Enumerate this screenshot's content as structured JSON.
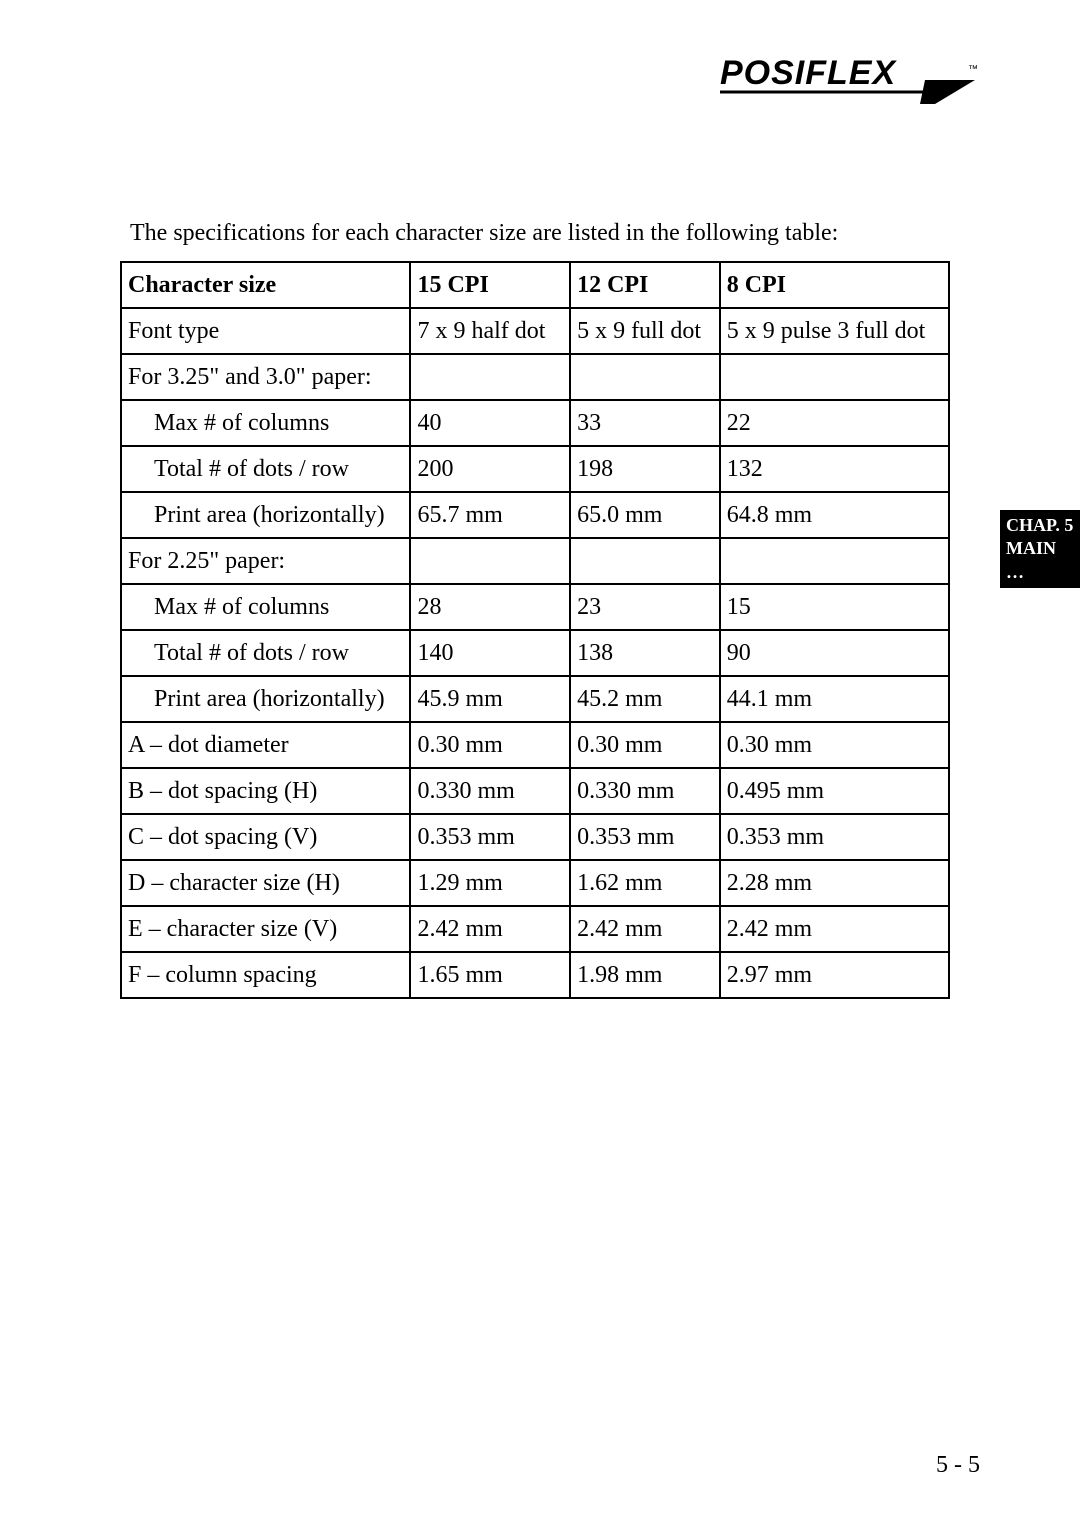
{
  "logo": {
    "text": "POSIFLEX",
    "tm": "™"
  },
  "intro": "The specifications for each character size are listed in the following table:",
  "table": {
    "columns": [
      "Character size",
      "15 CPI",
      "12 CPI",
      "8 CPI"
    ],
    "rows": [
      {
        "cells": [
          "Font type",
          "7 x 9  half dot",
          "5 x 9  full dot",
          "5 x 9  pulse 3 full dot"
        ],
        "indent": false
      },
      {
        "cells": [
          "For 3.25\" and 3.0\" paper:",
          "",
          "",
          ""
        ],
        "indent": false
      },
      {
        "cells": [
          "Max # of columns",
          "40",
          "33",
          "22"
        ],
        "indent": true
      },
      {
        "cells": [
          "Total # of dots / row",
          "200",
          "198",
          "132"
        ],
        "indent": true
      },
      {
        "cells": [
          "Print area (horizontally)",
          "65.7 mm",
          "65.0 mm",
          "64.8 mm"
        ],
        "indent": true
      },
      {
        "cells": [
          "For 2.25\" paper:",
          "",
          "",
          ""
        ],
        "indent": false
      },
      {
        "cells": [
          "Max # of columns",
          "28",
          "23",
          "15"
        ],
        "indent": true
      },
      {
        "cells": [
          "Total # of dots / row",
          "140",
          "138",
          "90"
        ],
        "indent": true
      },
      {
        "cells": [
          "Print area (horizontally)",
          "45.9 mm",
          "45.2 mm",
          "44.1 mm"
        ],
        "indent": true
      },
      {
        "cells": [
          "A – dot diameter",
          "0.30 mm",
          "0.30 mm",
          "0.30 mm"
        ],
        "indent": false
      },
      {
        "cells": [
          "B  – dot spacing (H)",
          "0.330 mm",
          "0.330 mm",
          "0.495 mm"
        ],
        "indent": false
      },
      {
        "cells": [
          "C – dot spacing (V)",
          "0.353 mm",
          "0.353 mm",
          "0.353 mm"
        ],
        "indent": false
      },
      {
        "cells": [
          "D – character size (H)",
          "1.29 mm",
          "1.62 mm",
          "2.28 mm"
        ],
        "indent": false
      },
      {
        "cells": [
          "E – character size (V)",
          "2.42 mm",
          "2.42 mm",
          "2.42 mm"
        ],
        "indent": false
      },
      {
        "cells": [
          "F – column spacing",
          "1.65 mm",
          "1.98 mm",
          "2.97 mm"
        ],
        "indent": false
      }
    ]
  },
  "side_tab": {
    "line1": "CHAP. 5",
    "line2": "MAIN …"
  },
  "page_number": "5 - 5"
}
